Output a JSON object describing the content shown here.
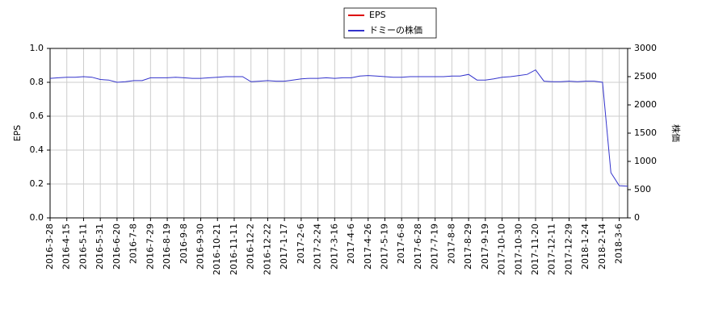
{
  "chart_data": {
    "type": "line",
    "ylabel": "EPS",
    "y2label": "株価",
    "categories": [
      "2016-3-28",
      null,
      "2016-4-15",
      null,
      "2016-5-11",
      null,
      "2016-5-31",
      null,
      "2016-6-20",
      null,
      "2016-7-8",
      null,
      "2016-7-29",
      null,
      "2016-8-19",
      null,
      "2016-9-8",
      null,
      "2016-9-30",
      null,
      "2016-10-21",
      null,
      "2016-11-11",
      null,
      "2016-12-2",
      null,
      "2016-12-22",
      null,
      "2017-1-17",
      null,
      "2017-2-6",
      null,
      "2017-2-24",
      null,
      "2017-3-16",
      null,
      "2017-4-6",
      null,
      "2017-4-26",
      null,
      "2017-5-19",
      null,
      "2017-6-8",
      null,
      "2017-6-28",
      null,
      "2017-7-19",
      null,
      "2017-8-8",
      null,
      "2017-8-29",
      null,
      "2017-9-19",
      null,
      "2017-10-10",
      null,
      "2017-10-30",
      null,
      "2017-11-20",
      null,
      "2017-12-11",
      null,
      "2017-12-29",
      null,
      "2018-1-24",
      null,
      "2018-2-14",
      null,
      "2018-3-6",
      null
    ],
    "series": [
      {
        "name": "EPS",
        "color": "#dd0000",
        "axis": "y",
        "values": [
          null,
          null,
          null,
          null,
          null,
          null,
          null,
          null,
          null,
          null,
          null,
          null,
          null,
          null,
          null,
          null,
          null,
          null,
          null,
          null,
          null,
          null,
          null,
          null,
          null,
          null,
          null,
          null,
          null,
          null,
          null,
          null,
          null,
          null,
          null,
          null,
          null,
          null,
          null,
          null,
          null,
          null,
          null,
          null,
          null,
          null,
          null,
          null,
          null,
          null,
          null,
          null,
          null,
          null,
          null,
          null,
          null,
          null,
          null,
          null,
          null,
          null,
          null,
          null,
          null,
          null,
          null,
          null,
          null,
          null
        ]
      },
      {
        "name": "ドミーの株価",
        "color": "#3333cc",
        "axis": "y2",
        "values": [
          2470,
          2480,
          2490,
          2490,
          2500,
          2490,
          2450,
          2440,
          2400,
          2410,
          2430,
          2430,
          2480,
          2480,
          2480,
          2490,
          2480,
          2470,
          2470,
          2480,
          2490,
          2500,
          2500,
          2500,
          2410,
          2420,
          2430,
          2420,
          2420,
          2440,
          2460,
          2470,
          2470,
          2480,
          2470,
          2480,
          2480,
          2510,
          2520,
          2510,
          2500,
          2490,
          2490,
          2500,
          2500,
          2500,
          2500,
          2500,
          2510,
          2510,
          2540,
          2440,
          2440,
          2460,
          2490,
          2500,
          2520,
          2540,
          2620,
          2420,
          2410,
          2410,
          2420,
          2410,
          2420,
          2420,
          2400,
          800,
          570,
          560
        ]
      }
    ],
    "ylim": [
      0,
      1
    ],
    "yticks": [
      {
        "value": 0,
        "label": "0.0"
      },
      0.2,
      0.4,
      0.6,
      0.8,
      {
        "value": 1,
        "label": "1.0"
      }
    ],
    "y2lim": [
      0,
      3000
    ],
    "y2ticks": [
      0,
      500,
      1000,
      1500,
      2000,
      2500,
      3000
    ],
    "grid": true
  }
}
